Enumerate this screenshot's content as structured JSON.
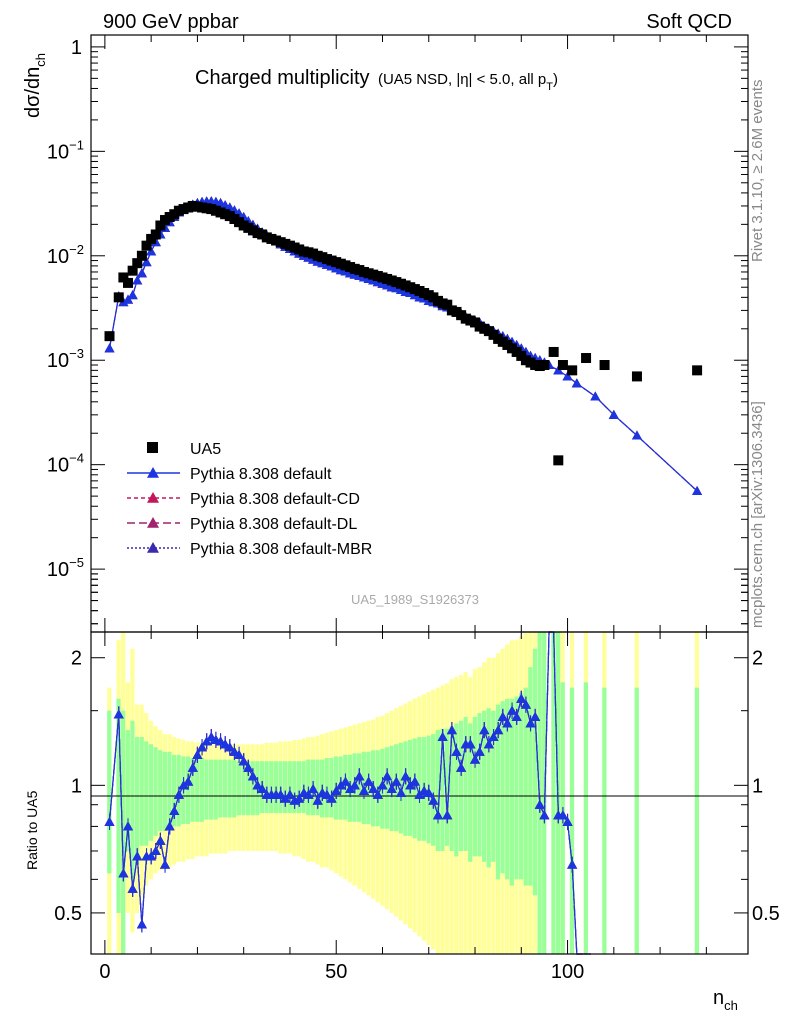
{
  "header": {
    "left": "900 GeV ppbar",
    "right": "Soft QCD",
    "title_main": "Charged multiplicity",
    "title_detail": "(UA5 NSD, |η| < 5.0, all p",
    "title_detail_sub": "T",
    "title_detail_close": ")"
  },
  "side": {
    "rivet": "Rivet 3.1.10, ≥ 2.6M events",
    "mcplots": "mcplots.cern.ch [arXiv:1306.3436]"
  },
  "watermark": "UA5_1989_S1926373",
  "axes": {
    "y_main_label": "dσ/dn",
    "y_main_sub": "ch",
    "y_ratio_label": "Ratio to UA5",
    "x_label": "n",
    "x_sub": "ch",
    "x_ticks": [
      "0",
      "50",
      "100"
    ],
    "y_main_ticks": [
      {
        "base": "1",
        "exp": ""
      },
      {
        "base": "10",
        "exp": "−1"
      },
      {
        "base": "10",
        "exp": "−2"
      },
      {
        "base": "10",
        "exp": "−3"
      },
      {
        "base": "10",
        "exp": "−4"
      },
      {
        "base": "10",
        "exp": "−5"
      }
    ],
    "y_ratio_ticks": [
      "0.5",
      "1",
      "2"
    ]
  },
  "legend": [
    {
      "label": "UA5",
      "color": "#000000",
      "marker": "square",
      "dash": ""
    },
    {
      "label": "Pythia 8.308 default",
      "color": "#1b35e0",
      "marker": "triangle",
      "dash": ""
    },
    {
      "label": "Pythia 8.308 default-CD",
      "color": "#c2185b",
      "marker": "triangle",
      "dash": "4,3"
    },
    {
      "label": "Pythia 8.308 default-DL",
      "color": "#a0246e",
      "marker": "triangle",
      "dash": "8,4"
    },
    {
      "label": "Pythia 8.308 default-MBR",
      "color": "#3a2ab0",
      "marker": "triangle",
      "dash": "2,2"
    }
  ],
  "chart_data": {
    "type": "scatter",
    "x_range": [
      -3,
      139
    ],
    "y_log": true,
    "y_range": [
      2.5e-06,
      1.3
    ],
    "ratio_range": [
      0.4,
      2.3
    ],
    "ua5": {
      "x": [
        1,
        3,
        4,
        5,
        6,
        7,
        8,
        9,
        10,
        11,
        12,
        13,
        14,
        15,
        16,
        17,
        18,
        19,
        20,
        21,
        22,
        23,
        24,
        25,
        26,
        27,
        28,
        29,
        30,
        31,
        32,
        33,
        34,
        35,
        36,
        37,
        38,
        39,
        40,
        41,
        42,
        43,
        44,
        45,
        46,
        47,
        48,
        49,
        50,
        51,
        52,
        53,
        54,
        55,
        56,
        57,
        58,
        59,
        60,
        61,
        62,
        63,
        64,
        65,
        66,
        67,
        68,
        69,
        70,
        71,
        72,
        73,
        74,
        75,
        76,
        77,
        78,
        79,
        80,
        81,
        82,
        83,
        84,
        85,
        86,
        87,
        88,
        89,
        90,
        91,
        92,
        93,
        94,
        95,
        97,
        98,
        99,
        101,
        104,
        108,
        115,
        128
      ],
      "y": [
        0.0017,
        0.004,
        0.0062,
        0.0055,
        0.0072,
        0.0085,
        0.01,
        0.0125,
        0.0145,
        0.016,
        0.0195,
        0.022,
        0.0235,
        0.025,
        0.027,
        0.028,
        0.029,
        0.03,
        0.0295,
        0.029,
        0.0285,
        0.028,
        0.027,
        0.026,
        0.025,
        0.024,
        0.0225,
        0.021,
        0.0195,
        0.0185,
        0.0175,
        0.0165,
        0.016,
        0.015,
        0.0145,
        0.014,
        0.0135,
        0.013,
        0.0125,
        0.012,
        0.0115,
        0.011,
        0.0108,
        0.0105,
        0.01,
        0.0097,
        0.0093,
        0.009,
        0.0087,
        0.0084,
        0.0081,
        0.0078,
        0.0075,
        0.0073,
        0.007,
        0.0068,
        0.0066,
        0.0064,
        0.0062,
        0.006,
        0.0058,
        0.0056,
        0.0054,
        0.0052,
        0.005,
        0.0048,
        0.0046,
        0.0044,
        0.0042,
        0.004,
        0.0037,
        0.0035,
        0.0034,
        0.003,
        0.0029,
        0.0027,
        0.0025,
        0.0024,
        0.0023,
        0.0021,
        0.002,
        0.0019,
        0.00175,
        0.0016,
        0.0015,
        0.0014,
        0.0013,
        0.0012,
        0.0011,
        0.001,
        0.00095,
        0.0009,
        0.00088,
        0.0009,
        0.0012,
        0.00011,
        0.0009,
        0.0008,
        0.00105,
        0.0009,
        0.0007,
        0.0008
      ]
    },
    "mc": {
      "x": [
        1,
        3,
        4,
        5,
        6,
        7,
        8,
        9,
        10,
        11,
        12,
        13,
        14,
        15,
        16,
        17,
        18,
        19,
        20,
        21,
        22,
        23,
        24,
        25,
        26,
        27,
        28,
        29,
        30,
        31,
        32,
        33,
        34,
        35,
        36,
        37,
        38,
        39,
        40,
        41,
        42,
        43,
        44,
        45,
        46,
        47,
        48,
        49,
        50,
        51,
        52,
        53,
        54,
        55,
        56,
        57,
        58,
        59,
        60,
        61,
        62,
        63,
        64,
        65,
        66,
        67,
        68,
        69,
        70,
        71,
        72,
        73,
        74,
        75,
        76,
        77,
        78,
        79,
        80,
        81,
        82,
        83,
        84,
        85,
        86,
        87,
        88,
        89,
        90,
        91,
        92,
        93,
        94,
        95,
        96,
        98,
        100,
        102,
        106,
        110,
        115,
        128
      ],
      "y": [
        0.0013,
        0.0041,
        0.0036,
        0.0038,
        0.0042,
        0.0058,
        0.0068,
        0.0087,
        0.011,
        0.0135,
        0.016,
        0.0185,
        0.021,
        0.0235,
        0.026,
        0.028,
        0.0295,
        0.031,
        0.032,
        0.0328,
        0.0332,
        0.0333,
        0.0328,
        0.032,
        0.0305,
        0.029,
        0.0272,
        0.0255,
        0.0235,
        0.0215,
        0.0198,
        0.0182,
        0.0168,
        0.0157,
        0.0146,
        0.0137,
        0.0129,
        0.0122,
        0.0116,
        0.011,
        0.0105,
        0.01,
        0.0096,
        0.0092,
        0.0088,
        0.0085,
        0.0082,
        0.0079,
        0.0076,
        0.0073,
        0.0071,
        0.0068,
        0.0066,
        0.0064,
        0.0062,
        0.006,
        0.0058,
        0.0056,
        0.0054,
        0.0052,
        0.005,
        0.0049,
        0.0047,
        0.0045,
        0.0044,
        0.0042,
        0.004,
        0.0039,
        0.0037,
        0.0036,
        0.0035,
        0.0033,
        0.0032,
        0.003,
        0.0029,
        0.0028,
        0.0026,
        0.0025,
        0.0024,
        0.0023,
        0.0021,
        0.002,
        0.0019,
        0.0018,
        0.0017,
        0.0016,
        0.0015,
        0.0014,
        0.0013,
        0.0012,
        0.0011,
        0.00105,
        0.001,
        0.00095,
        0.0009,
        0.0008,
        0.0007,
        0.0006,
        0.00045,
        0.0003,
        0.00019,
        5.6e-05
      ]
    },
    "ratio": {
      "x": [
        1,
        3,
        4,
        5,
        6,
        7,
        8,
        9,
        10,
        11,
        12,
        13,
        14,
        15,
        16,
        17,
        18,
        19,
        20,
        21,
        22,
        23,
        24,
        25,
        26,
        27,
        28,
        29,
        30,
        31,
        32,
        33,
        34,
        35,
        36,
        37,
        38,
        39,
        40,
        41,
        42,
        43,
        44,
        45,
        46,
        47,
        48,
        49,
        50,
        51,
        52,
        53,
        54,
        55,
        56,
        57,
        58,
        59,
        60,
        61,
        62,
        63,
        64,
        65,
        66,
        67,
        68,
        69,
        70,
        71,
        72,
        73,
        74,
        75,
        76,
        77,
        78,
        79,
        80,
        81,
        82,
        83,
        84,
        85,
        86,
        87,
        88,
        89,
        90,
        91,
        92,
        93,
        94,
        95,
        96,
        97,
        98,
        99,
        100,
        101,
        102,
        104,
        105
      ],
      "y": [
        0.82,
        1.47,
        0.62,
        0.8,
        0.57,
        0.68,
        0.47,
        0.68,
        0.68,
        0.7,
        0.74,
        0.65,
        0.8,
        0.87,
        0.95,
        1.0,
        1.02,
        1.1,
        1.18,
        1.23,
        1.27,
        1.3,
        1.28,
        1.27,
        1.25,
        1.23,
        1.2,
        1.18,
        1.14,
        1.1,
        1.05,
        1.0,
        0.98,
        0.95,
        0.95,
        0.95,
        0.95,
        0.93,
        0.95,
        0.92,
        0.93,
        0.96,
        0.95,
        0.98,
        0.92,
        0.96,
        0.95,
        0.93,
        0.97,
        1.0,
        1.02,
        0.98,
        1.0,
        1.05,
        0.97,
        1.02,
        0.98,
        0.95,
        1.0,
        1.05,
        0.98,
        1.02,
        0.96,
        1.05,
        1.0,
        1.02,
        0.95,
        0.97,
        0.96,
        0.92,
        0.85,
        1.3,
        0.85,
        1.35,
        1.2,
        1.1,
        1.25,
        1.25,
        1.15,
        1.2,
        1.35,
        1.25,
        1.3,
        1.35,
        1.45,
        1.4,
        1.5,
        1.45,
        1.6,
        1.55,
        1.4,
        1.45,
        0.9,
        0.85,
        2.4,
        2.4,
        0.85,
        0.85,
        0.82,
        0.65,
        0.4,
        0.4,
        0.4
      ]
    },
    "bands": {
      "x": [
        1,
        3,
        4,
        5,
        6,
        7,
        8,
        9,
        10,
        11,
        12,
        13,
        14,
        15,
        16,
        17,
        18,
        19,
        20,
        21,
        22,
        23,
        24,
        25,
        26,
        27,
        28,
        29,
        30,
        31,
        32,
        33,
        34,
        35,
        36,
        37,
        38,
        39,
        40,
        41,
        42,
        43,
        44,
        45,
        46,
        47,
        48,
        49,
        50,
        51,
        52,
        53,
        54,
        55,
        56,
        57,
        58,
        59,
        60,
        61,
        62,
        63,
        64,
        65,
        66,
        67,
        68,
        69,
        70,
        71,
        72,
        73,
        74,
        75,
        76,
        77,
        78,
        79,
        80,
        81,
        82,
        83,
        84,
        85,
        86,
        87,
        88,
        89,
        90,
        91,
        92,
        93,
        94,
        95,
        97,
        98,
        99,
        101,
        104,
        108,
        115,
        128
      ],
      "green_lo": [
        0.62,
        0.5,
        0.25,
        0.7,
        0.6,
        0.65,
        0.72,
        0.72,
        0.74,
        0.76,
        0.78,
        0.78,
        0.79,
        0.8,
        0.8,
        0.81,
        0.81,
        0.82,
        0.82,
        0.82,
        0.83,
        0.83,
        0.83,
        0.84,
        0.84,
        0.84,
        0.84,
        0.85,
        0.85,
        0.85,
        0.85,
        0.85,
        0.86,
        0.86,
        0.86,
        0.86,
        0.86,
        0.86,
        0.86,
        0.86,
        0.86,
        0.86,
        0.85,
        0.85,
        0.85,
        0.84,
        0.84,
        0.84,
        0.83,
        0.83,
        0.83,
        0.82,
        0.82,
        0.82,
        0.81,
        0.81,
        0.8,
        0.8,
        0.79,
        0.79,
        0.78,
        0.78,
        0.77,
        0.76,
        0.76,
        0.75,
        0.74,
        0.74,
        0.73,
        0.72,
        0.7,
        0.7,
        0.72,
        0.7,
        0.68,
        0.7,
        0.7,
        0.66,
        0.68,
        0.68,
        0.66,
        0.64,
        0.66,
        0.6,
        0.62,
        0.6,
        0.58,
        0.6,
        0.6,
        0.58,
        0.58,
        0.55,
        0.4,
        0.4,
        0.4,
        0.4,
        0.4,
        0.4,
        0.4,
        0.4,
        0.4,
        0.4
      ],
      "green_hi": [
        1.5,
        1.6,
        1.5,
        1.35,
        1.42,
        1.3,
        1.3,
        1.27,
        1.25,
        1.23,
        1.21,
        1.2,
        1.2,
        1.18,
        1.18,
        1.17,
        1.17,
        1.16,
        1.16,
        1.16,
        1.15,
        1.15,
        1.15,
        1.15,
        1.15,
        1.15,
        1.15,
        1.14,
        1.14,
        1.14,
        1.14,
        1.14,
        1.14,
        1.14,
        1.14,
        1.14,
        1.14,
        1.14,
        1.14,
        1.14,
        1.14,
        1.14,
        1.15,
        1.15,
        1.15,
        1.15,
        1.16,
        1.16,
        1.17,
        1.17,
        1.18,
        1.18,
        1.19,
        1.19,
        1.2,
        1.2,
        1.21,
        1.21,
        1.22,
        1.23,
        1.24,
        1.25,
        1.26,
        1.27,
        1.28,
        1.29,
        1.3,
        1.3,
        1.31,
        1.32,
        1.35,
        1.36,
        1.36,
        1.38,
        1.4,
        1.42,
        1.45,
        1.4,
        1.45,
        1.48,
        1.5,
        1.52,
        1.5,
        1.55,
        1.58,
        1.6,
        1.6,
        1.62,
        1.65,
        1.7,
        1.9,
        2.1,
        2.3,
        2.3,
        2.3,
        2.3,
        1.75,
        1.7,
        1.75,
        1.7,
        1.7,
        1.7
      ],
      "yellow_lo": [
        0.4,
        0.4,
        0.4,
        0.5,
        0.45,
        0.5,
        0.55,
        0.58,
        0.6,
        0.62,
        0.63,
        0.64,
        0.64,
        0.65,
        0.66,
        0.66,
        0.67,
        0.67,
        0.68,
        0.68,
        0.68,
        0.69,
        0.69,
        0.69,
        0.69,
        0.7,
        0.7,
        0.7,
        0.7,
        0.7,
        0.7,
        0.7,
        0.7,
        0.7,
        0.7,
        0.7,
        0.69,
        0.69,
        0.69,
        0.68,
        0.68,
        0.67,
        0.66,
        0.66,
        0.65,
        0.64,
        0.64,
        0.63,
        0.62,
        0.61,
        0.6,
        0.59,
        0.58,
        0.57,
        0.56,
        0.55,
        0.54,
        0.53,
        0.52,
        0.51,
        0.5,
        0.49,
        0.48,
        0.47,
        0.46,
        0.45,
        0.44,
        0.43,
        0.42,
        0.41,
        0.4,
        0.4,
        0.4,
        0.4,
        0.4,
        0.4,
        0.4,
        0.4,
        0.4,
        0.4,
        0.4,
        0.4,
        0.4,
        0.4,
        0.4,
        0.4,
        0.4,
        0.4,
        0.4,
        0.4,
        0.4,
        0.4,
        0.4,
        0.4,
        0.4,
        0.4,
        0.4,
        0.4,
        0.4,
        0.4,
        0.4,
        0.4
      ],
      "yellow_hi": [
        1.7,
        2.2,
        2.3,
        1.75,
        2.1,
        1.55,
        1.55,
        1.48,
        1.42,
        1.38,
        1.35,
        1.32,
        1.32,
        1.3,
        1.29,
        1.28,
        1.27,
        1.27,
        1.26,
        1.26,
        1.25,
        1.25,
        1.25,
        1.25,
        1.25,
        1.25,
        1.25,
        1.25,
        1.25,
        1.25,
        1.25,
        1.25,
        1.25,
        1.26,
        1.26,
        1.26,
        1.27,
        1.27,
        1.27,
        1.28,
        1.28,
        1.29,
        1.3,
        1.3,
        1.31,
        1.32,
        1.33,
        1.34,
        1.35,
        1.36,
        1.37,
        1.38,
        1.39,
        1.4,
        1.41,
        1.42,
        1.43,
        1.45,
        1.46,
        1.48,
        1.5,
        1.52,
        1.54,
        1.56,
        1.58,
        1.6,
        1.62,
        1.64,
        1.66,
        1.68,
        1.7,
        1.72,
        1.74,
        1.78,
        1.8,
        1.82,
        1.85,
        1.8,
        1.88,
        1.9,
        1.95,
        2.0,
        2.0,
        2.05,
        2.1,
        2.15,
        2.2,
        2.2,
        2.25,
        2.3,
        2.3,
        2.3,
        2.3,
        2.3,
        2.3,
        2.3,
        2.3,
        2.3,
        2.3,
        2.3,
        2.3,
        2.3
      ]
    }
  }
}
